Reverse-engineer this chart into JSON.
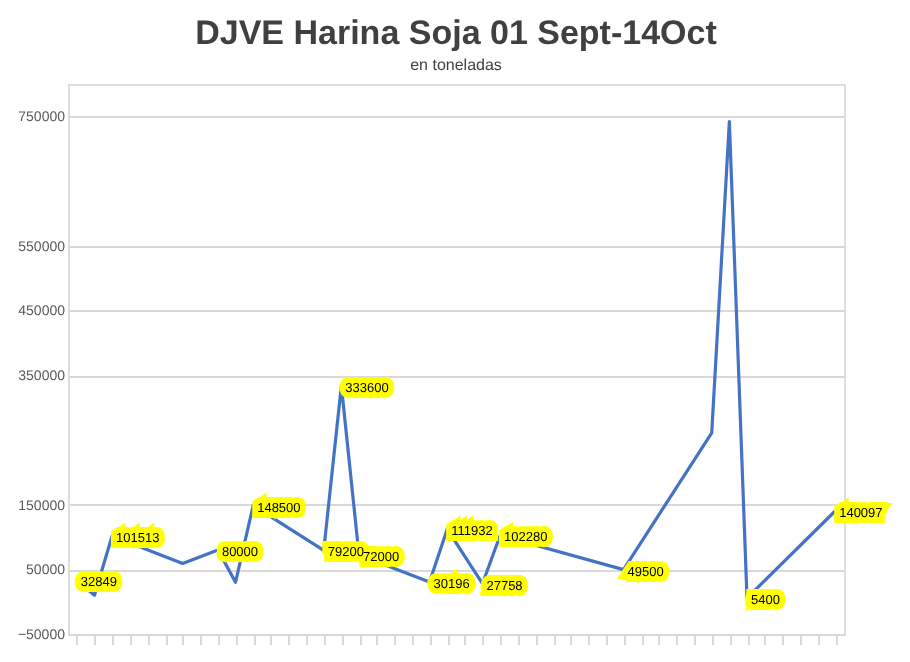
{
  "chart_data": {
    "type": "line",
    "title": "DJVE Harina Soja 01 Sept-14Oct",
    "subtitle": "en toneladas",
    "categories": [
      null,
      null,
      null,
      null,
      null,
      null,
      null,
      null,
      null,
      null,
      null,
      null,
      null,
      null,
      null,
      null,
      null,
      null,
      null,
      null,
      null,
      null,
      null,
      null,
      null,
      null,
      null,
      null,
      null,
      null,
      null,
      null,
      null,
      null,
      null,
      null,
      null,
      null,
      null,
      null,
      null,
      null,
      null,
      null
    ],
    "series": [
      {
        "color": "#4472c4",
        "values": [
          32849,
          10000,
          101513,
          null,
          null,
          null,
          59000,
          null,
          80000,
          30000,
          148500,
          null,
          null,
          null,
          79200,
          333600,
          72000,
          null,
          null,
          null,
          30196,
          111932,
          null,
          27758,
          102280,
          null,
          null,
          null,
          null,
          null,
          null,
          49500,
          null,
          null,
          null,
          null,
          261000,
          742000,
          5400,
          null,
          null,
          null,
          null,
          140097
        ],
        "value_labels": [
          "32849",
          null,
          "101513",
          null,
          null,
          null,
          null,
          null,
          "80000",
          null,
          "148500",
          null,
          null,
          null,
          "79200",
          "333600",
          "72000",
          null,
          null,
          null,
          "30196",
          "111932",
          null,
          "27758",
          "102280",
          null,
          null,
          null,
          null,
          null,
          null,
          "49500",
          null,
          null,
          null,
          null,
          null,
          null,
          "5400",
          null,
          null,
          null,
          null,
          "140097"
        ]
      }
    ],
    "ylim": [
      -50000,
      800000
    ],
    "yticks": [
      -50000,
      50000,
      150000,
      350000,
      450000,
      550000,
      750000
    ],
    "grid": "y",
    "tick_labels": "y",
    "marker": "none",
    "line_style": "solid"
  }
}
